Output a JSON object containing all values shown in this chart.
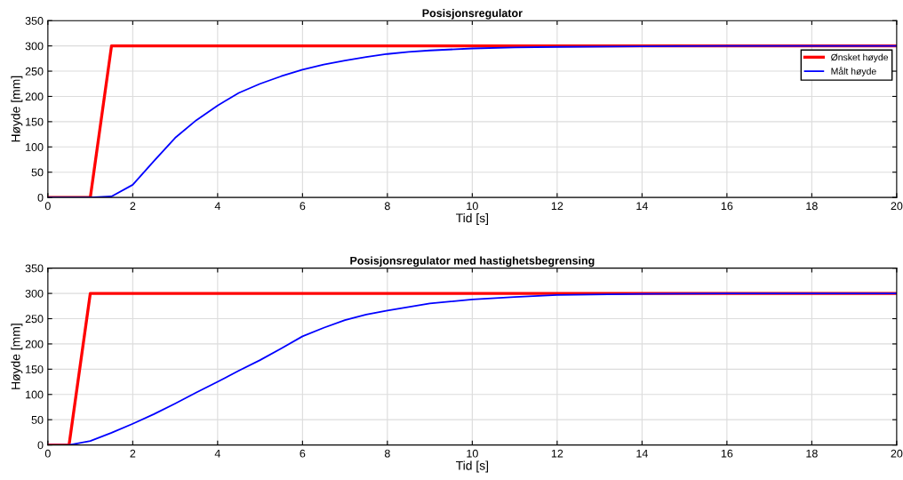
{
  "chart_data": [
    {
      "type": "line",
      "title": "Posisjonsregulator",
      "xlabel": "Tid [s]",
      "ylabel": "Høyde [mm]",
      "xlim": [
        0,
        20
      ],
      "ylim": [
        0,
        350
      ],
      "xticks": [
        0,
        2,
        4,
        6,
        8,
        10,
        12,
        14,
        16,
        18,
        20
      ],
      "yticks": [
        0,
        50,
        100,
        150,
        200,
        250,
        300,
        350
      ],
      "grid": true,
      "legend": "top right",
      "series": [
        {
          "name": "Ønsket høyde",
          "color": "#ff0000",
          "x": [
            0,
            1,
            1.5,
            20
          ],
          "values": [
            0,
            0,
            300,
            300
          ]
        },
        {
          "name": "Målt høyde",
          "color": "#0000ff",
          "x": [
            0,
            1,
            1.5,
            2,
            2.5,
            3,
            3.5,
            4,
            4.5,
            5,
            5.5,
            6,
            6.5,
            7,
            7.5,
            8,
            8.5,
            9,
            10,
            11,
            12,
            14,
            16,
            20
          ],
          "values": [
            0,
            0,
            2,
            25,
            72,
            118,
            153,
            182,
            207,
            225,
            240,
            253,
            263,
            271,
            278,
            284,
            288,
            291,
            295,
            297,
            298,
            299,
            300,
            300
          ]
        }
      ]
    },
    {
      "type": "line",
      "title": "Posisjonsregulator med hastighetsbegrensing",
      "xlabel": "Tid [s]",
      "ylabel": "Høyde [mm]",
      "xlim": [
        0,
        20
      ],
      "ylim": [
        0,
        350
      ],
      "xticks": [
        0,
        2,
        4,
        6,
        8,
        10,
        12,
        14,
        16,
        18,
        20
      ],
      "yticks": [
        0,
        50,
        100,
        150,
        200,
        250,
        300,
        350
      ],
      "grid": true,
      "series": [
        {
          "color": "#ff0000",
          "x": [
            0,
            0.5,
            1,
            20
          ],
          "values": [
            0,
            0,
            300,
            300
          ]
        },
        {
          "color": "#0000ff",
          "x": [
            0,
            0.5,
            1,
            1.5,
            2,
            2.5,
            3,
            3.5,
            4,
            4.5,
            5,
            5.5,
            6,
            6.5,
            7,
            7.5,
            8,
            8.5,
            9,
            10,
            11,
            12,
            14,
            16,
            20
          ],
          "values": [
            0,
            0,
            8,
            24,
            42,
            61,
            82,
            104,
            125,
            147,
            168,
            191,
            215,
            232,
            247,
            258,
            266,
            273,
            280,
            288,
            293,
            297,
            299,
            300,
            300
          ]
        }
      ]
    }
  ]
}
